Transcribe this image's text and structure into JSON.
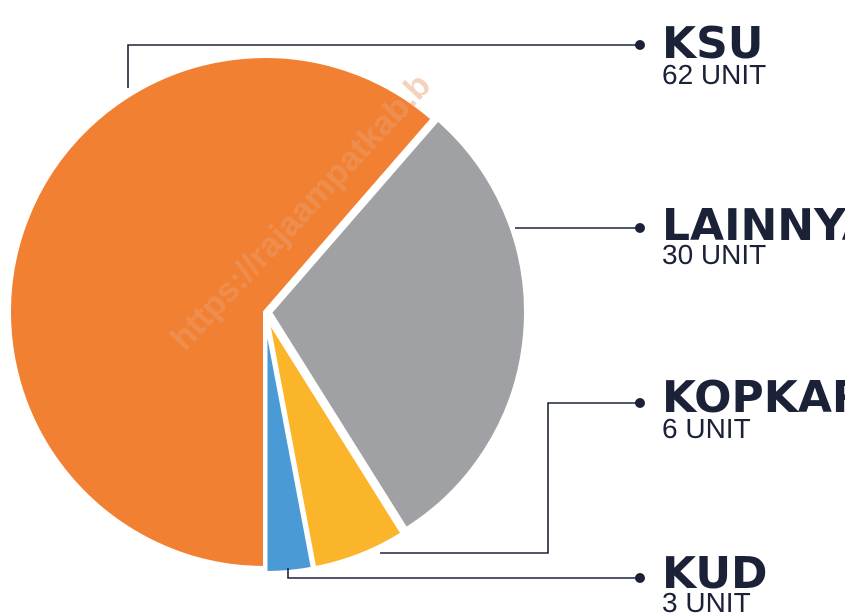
{
  "chart_data": {
    "type": "pie",
    "categories": [
      "KSU",
      "LAINNYA",
      "KOPKAR",
      "KUD"
    ],
    "values": [
      62,
      30,
      6,
      3
    ],
    "value_labels": [
      "62 UNIT",
      "30 UNIT",
      "6 UNIT",
      "3 UNIT"
    ],
    "colors": [
      "#f28033",
      "#a0a1a5",
      "#fbb52b",
      "#4a9ad6"
    ],
    "watermark": "https://rajaampatkab.b"
  }
}
